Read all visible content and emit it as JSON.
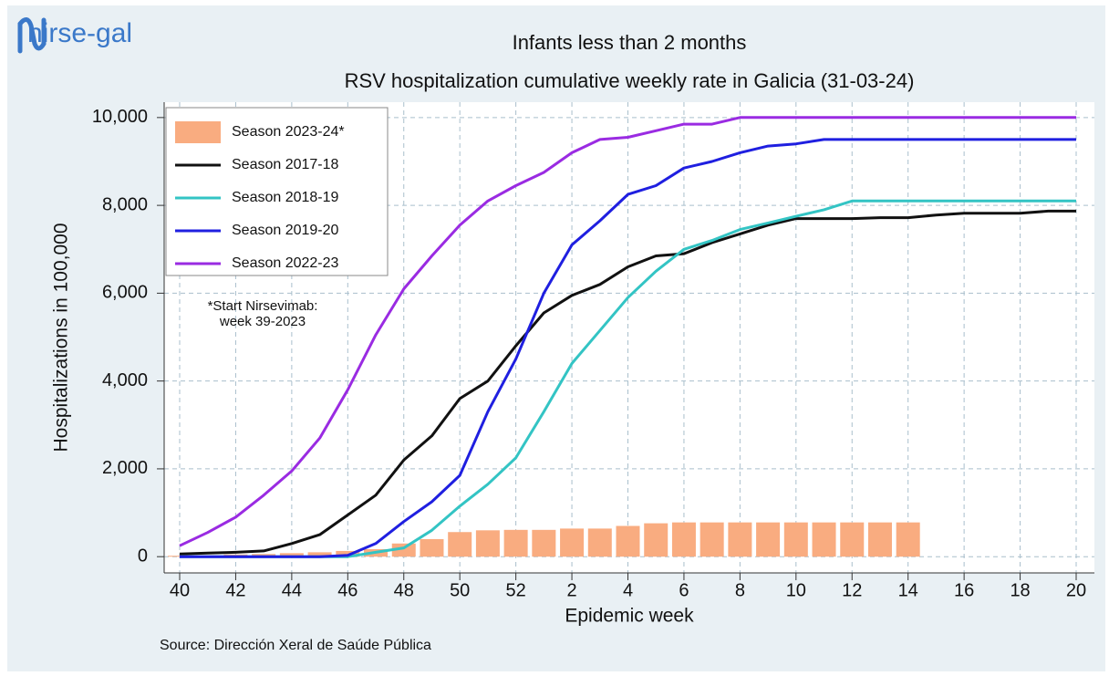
{
  "logo": "nirse-gal",
  "chart_data": {
    "type": "line",
    "title": "Infants less than 2 months",
    "subtitle": "RSV hospitalization cumulative weekly rate in Galicia (31-03-24)",
    "y_label": "Hospitalizations in 100,000",
    "x_label": "Epidemic week",
    "source": "Source: Dirección Xeral de Saúde Pública",
    "annotations": [
      "*Start Nirsevimab:",
      "week 39-2023"
    ],
    "categories": [
      "40",
      null,
      "42",
      null,
      "44",
      null,
      "46",
      null,
      "48",
      null,
      "50",
      null,
      "52",
      null,
      "2",
      null,
      "4",
      null,
      "6",
      null,
      "8",
      null,
      "10",
      null,
      "12",
      null,
      "14",
      null,
      "16",
      null,
      "18",
      null,
      "20"
    ],
    "ylim": [
      -370,
      10350
    ],
    "yticks": [
      0,
      {
        "value": 2000,
        "label": "2,000"
      },
      {
        "value": 4000,
        "label": "4,000"
      },
      {
        "value": 6000,
        "label": "6,000"
      },
      {
        "value": 8000,
        "label": "8,000"
      },
      {
        "value": 10000,
        "label": "10,000"
      }
    ],
    "grid": true,
    "legend": "top-left",
    "series": [
      {
        "name": "Season 2023-24*",
        "color": "#f9ac80",
        "mark": "bar",
        "values": [
          20,
          30,
          50,
          60,
          80,
          100,
          130,
          170,
          300,
          400,
          560,
          600,
          610,
          610,
          640,
          640,
          700,
          760,
          780,
          780,
          780,
          780,
          780,
          780,
          780,
          780,
          780,
          null,
          null,
          null,
          null,
          null,
          null
        ]
      },
      {
        "name": "Season 2017-18",
        "color": "#111111",
        "mark": "line",
        "values": [
          60,
          80,
          100,
          130,
          300,
          500,
          950,
          1400,
          2200,
          2750,
          3600,
          4000,
          4800,
          5550,
          5950,
          6200,
          6600,
          6850,
          6900,
          7150,
          7350,
          7550,
          7700,
          7700,
          7700,
          7720,
          7720,
          7780,
          7820,
          7820,
          7820,
          7870,
          7870
        ]
      },
      {
        "name": "Season 2018-19",
        "color": "#33c4c4",
        "mark": "line",
        "values": [
          0,
          0,
          0,
          0,
          0,
          0,
          0,
          100,
          200,
          600,
          1150,
          1650,
          2250,
          3300,
          4400,
          5150,
          5900,
          6500,
          7000,
          7200,
          7450,
          7600,
          7750,
          7900,
          8100,
          8100,
          8100,
          8100,
          8100,
          8100,
          8100,
          8100,
          8100
        ]
      },
      {
        "name": "Season 2019-20",
        "color": "#1f1fe0",
        "mark": "line",
        "values": [
          0,
          0,
          0,
          0,
          0,
          0,
          30,
          300,
          800,
          1250,
          1850,
          3300,
          4500,
          6000,
          7100,
          7650,
          8250,
          8450,
          8850,
          9000,
          9200,
          9350,
          9400,
          9500,
          9500,
          9500,
          9500,
          9500,
          9500,
          9500,
          9500,
          9500,
          9500
        ]
      },
      {
        "name": "Season 2022-23",
        "color": "#9a2be2",
        "mark": "line",
        "values": [
          250,
          550,
          900,
          1400,
          1950,
          2700,
          3800,
          5050,
          6100,
          6850,
          7550,
          8100,
          8450,
          8750,
          9200,
          9500,
          9550,
          9700,
          9850,
          9850,
          10000,
          10000,
          10000,
          10000,
          10000,
          10000,
          10000,
          10000,
          10000,
          10000,
          10000,
          10000,
          10000
        ]
      }
    ]
  }
}
